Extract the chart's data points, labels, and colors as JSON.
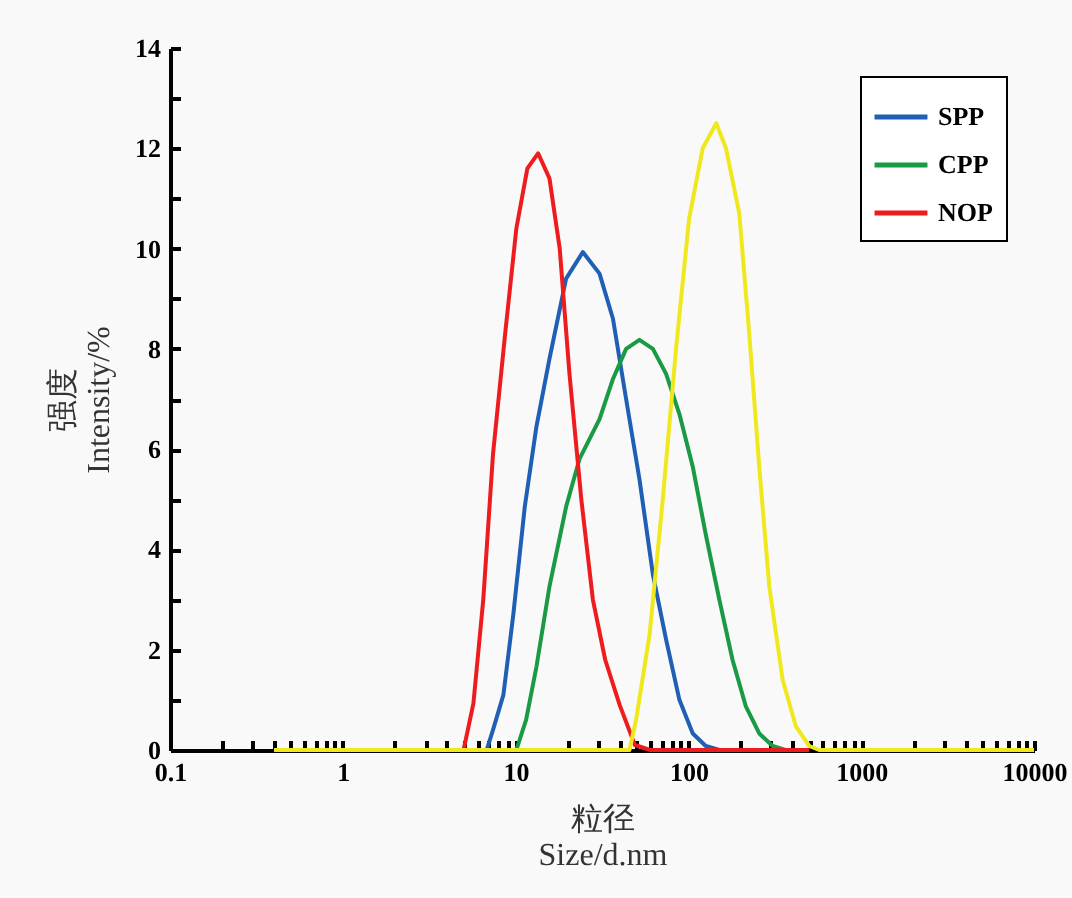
{
  "chart_data": {
    "type": "line",
    "xlabel": "粒径\nSize/d.nm",
    "ylabel": "强度\nIntensity/%",
    "log": "x",
    "grid": false,
    "legend": "top right",
    "xlim": [
      0.1,
      10000
    ],
    "ylim": [
      0,
      14
    ],
    "xticks": [
      0.1,
      {
        "value": 0.2,
        "label": null
      },
      {
        "value": 0.3,
        "label": null
      },
      {
        "value": 0.4,
        "label": null
      },
      {
        "value": 0.5,
        "label": null
      },
      {
        "value": 0.6,
        "label": null
      },
      {
        "value": 0.7,
        "label": null
      },
      {
        "value": 0.8,
        "label": null
      },
      {
        "value": 0.9,
        "label": null
      },
      1,
      {
        "value": 2,
        "label": null
      },
      {
        "value": 3,
        "label": null
      },
      {
        "value": 4,
        "label": null
      },
      {
        "value": 5,
        "label": null
      },
      {
        "value": 6,
        "label": null
      },
      {
        "value": 7,
        "label": null
      },
      {
        "value": 8,
        "label": null
      },
      {
        "value": 9,
        "label": null
      },
      10,
      {
        "value": 20,
        "label": null
      },
      {
        "value": 30,
        "label": null
      },
      {
        "value": 40,
        "label": null
      },
      {
        "value": 50,
        "label": null
      },
      {
        "value": 60,
        "label": null
      },
      {
        "value": 70,
        "label": null
      },
      {
        "value": 80,
        "label": null
      },
      {
        "value": 90,
        "label": null
      },
      100,
      {
        "value": 200,
        "label": null
      },
      {
        "value": 300,
        "label": null
      },
      {
        "value": 400,
        "label": null
      },
      {
        "value": 500,
        "label": null
      },
      {
        "value": 600,
        "label": null
      },
      {
        "value": 700,
        "label": null
      },
      {
        "value": 800,
        "label": null
      },
      {
        "value": 900,
        "label": null
      },
      1000,
      {
        "value": 2000,
        "label": null
      },
      {
        "value": 3000,
        "label": null
      },
      {
        "value": 4000,
        "label": null
      },
      {
        "value": 5000,
        "label": null
      },
      {
        "value": 6000,
        "label": null
      },
      {
        "value": 7000,
        "label": null
      },
      {
        "value": 8000,
        "label": null
      },
      {
        "value": 9000,
        "label": null
      },
      10000
    ],
    "yticks": [
      0,
      {
        "value": 1,
        "label": null
      },
      2,
      {
        "value": 3,
        "label": null
      },
      4,
      {
        "value": 5,
        "label": null
      },
      6,
      {
        "value": 7,
        "label": null
      },
      8,
      {
        "value": 9,
        "label": null
      },
      10,
      {
        "value": 11,
        "label": null
      },
      12,
      {
        "value": 13,
        "label": null
      },
      14
    ],
    "series": [
      {
        "name": "SPP",
        "color": "#1f5fb4",
        "x": [
          6.8,
          7.4,
          8.5,
          9.7,
          11.3,
          13.2,
          15.7,
          19.6,
          24.5,
          30.6,
          36.6,
          43.6,
          52.1,
          62.3,
          74.3,
          88.7,
          106,
          126,
          151
        ],
        "values": [
          0,
          0.4,
          1.1,
          2.7,
          4.85,
          6.45,
          7.8,
          9.4,
          9.93,
          9.5,
          8.6,
          7.0,
          5.4,
          3.5,
          2.2,
          1.0,
          0.33,
          0.08,
          0
        ]
      },
      {
        "name": "CPP",
        "color": "#1a9a45",
        "x": [
          10.1,
          11.5,
          13.2,
          15.7,
          19.6,
          23.4,
          30.6,
          36.6,
          43.6,
          52.1,
          62.3,
          74.3,
          88.7,
          106,
          126,
          151,
          180,
          215,
          257,
          307,
          364
        ],
        "values": [
          0,
          0.6,
          1.66,
          3.26,
          4.85,
          5.8,
          6.6,
          7.4,
          8.0,
          8.18,
          8.0,
          7.5,
          6.7,
          5.65,
          4.3,
          3.0,
          1.8,
          0.87,
          0.33,
          0.08,
          0
        ]
      },
      {
        "name": "NOP",
        "color": "#ee1c1c",
        "x": [
          5.0,
          5.7,
          6.5,
          7.4,
          8.7,
          10.1,
          11.7,
          13.5,
          15.7,
          18,
          20.5,
          24,
          28,
          33,
          40,
          49,
          60,
          500
        ],
        "values": [
          0,
          0.93,
          3.0,
          5.9,
          8.3,
          10.4,
          11.6,
          11.9,
          11.4,
          10.0,
          7.5,
          5.0,
          3.0,
          1.8,
          0.9,
          0.1,
          0,
          0
        ]
      },
      {
        "color": "#f0e81e",
        "x": [
          0.4,
          45.6,
          49.8,
          59.6,
          71.1,
          84.8,
          101,
          121,
          145,
          165,
          197,
          225,
          257,
          294,
          351,
          419,
          500,
          571,
          10000
        ],
        "values": [
          0,
          0,
          0.6,
          2.3,
          5.0,
          8.0,
          10.6,
          12.0,
          12.5,
          12.0,
          10.7,
          8.3,
          5.65,
          3.25,
          1.4,
          0.47,
          0.08,
          0,
          0
        ]
      }
    ]
  }
}
